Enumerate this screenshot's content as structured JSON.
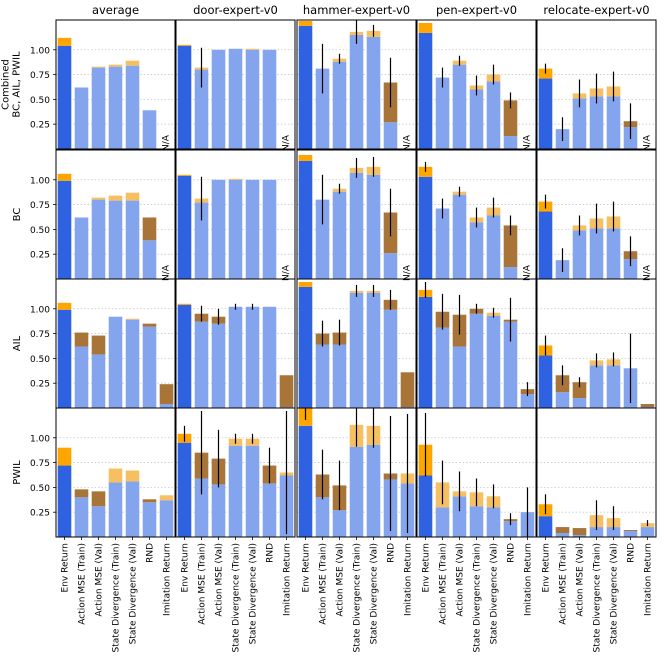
{
  "figure": {
    "column_titles": [
      "average",
      "door-expert-v0",
      "hammer-expert-v0",
      "pen-expert-v0",
      "relocate-expert-v0"
    ],
    "row_labels": [
      [
        "Combined",
        "BC, AIL, PWIL"
      ],
      [
        "BC"
      ],
      [
        "AIL"
      ],
      [
        "PWIL"
      ]
    ],
    "categories": [
      "Env Return",
      "Action MSE (Train)",
      "Action MSE (Val)",
      "State Divergence (Train)",
      "State Divergence (Val)",
      "RND",
      "Imitation Return"
    ],
    "na_label": "N/A",
    "colors": {
      "selected": "#2f62e0",
      "base": "#84a4ee",
      "over_selected": "#ffa500",
      "over_base": "#f6bf62",
      "under": "#a87438",
      "grid": "#c8c8c8",
      "errbar": "#000000"
    }
  },
  "chart_data": {
    "type": "bar",
    "layout": "grid 4 rows x 5 columns, shared x categories per column",
    "ylim": [
      0,
      1.3
    ],
    "yticks": [
      0.25,
      0.5,
      0.75,
      1.0
    ],
    "ytick_labels": [
      "0.25",
      "0.50",
      "0.75",
      "1.00"
    ],
    "grid": "horizontal dotted",
    "legend": "none",
    "bar_encoding": "v = value bar; d = gap to best (positive drawn orange above, negative drawn brown below top); e = error bar half-width; first bar highlighted as selected",
    "panels": [
      [
        {
          "bars": [
            {
              "v": 1.04,
              "d": 0.08
            },
            {
              "v": 0.62,
              "d": 0
            },
            {
              "v": 0.82,
              "d": 0.01
            },
            {
              "v": 0.83,
              "d": 0.02
            },
            {
              "v": 0.84,
              "d": 0.05
            },
            {
              "v": 0.39,
              "d": -0.22
            },
            {
              "na": true
            }
          ]
        },
        {
          "bars": [
            {
              "v": 1.04,
              "d": 0.01
            },
            {
              "v": 0.8,
              "d": 0.02,
              "e": 0.2
            },
            {
              "v": 1.0,
              "d": 0
            },
            {
              "v": 1.01,
              "d": 0
            },
            {
              "v": 1.0,
              "d": 0.01
            },
            {
              "v": 1.0,
              "d": 0
            },
            {
              "na": true
            }
          ]
        },
        {
          "bars": [
            {
              "v": 1.24,
              "d": 0.05
            },
            {
              "v": 0.81,
              "d": 0,
              "e": 0.25
            },
            {
              "v": 0.88,
              "d": 0.03,
              "e": 0.05
            },
            {
              "v": 1.15,
              "d": 0.03,
              "e": 0.12
            },
            {
              "v": 1.13,
              "d": 0.06,
              "e": 0.06
            },
            {
              "v": 0.27,
              "d": 0.4,
              "e": 0.25,
              "dir": "down"
            },
            {
              "na": true
            }
          ]
        },
        {
          "bars": [
            {
              "v": 1.17,
              "d": 0.1
            },
            {
              "v": 0.72,
              "d": 0,
              "e": 0.1
            },
            {
              "v": 0.85,
              "d": 0.04,
              "e": 0.05
            },
            {
              "v": 0.6,
              "d": 0.04,
              "e": 0.1
            },
            {
              "v": 0.68,
              "d": 0.07,
              "e": 0.1
            },
            {
              "v": 0.13,
              "d": 0.36,
              "e": 0.08,
              "dir": "down"
            },
            {
              "na": true
            }
          ]
        },
        {
          "bars": [
            {
              "v": 0.71,
              "d": 0.1,
              "e": 0.05
            },
            {
              "v": 0.2,
              "d": 0,
              "e": 0.12
            },
            {
              "v": 0.51,
              "d": 0.05,
              "e": 0.14
            },
            {
              "v": 0.53,
              "d": 0.08,
              "e": 0.15
            },
            {
              "v": 0.53,
              "d": 0.1,
              "e": 0.15
            },
            {
              "v": 0.22,
              "d": 0.06,
              "e": 0.18,
              "dir": "down"
            },
            {
              "na": true
            }
          ]
        }
      ],
      [
        {
          "bars": [
            {
              "v": 0.99,
              "d": 0.07
            },
            {
              "v": 0.62,
              "d": 0
            },
            {
              "v": 0.8,
              "d": 0.02
            },
            {
              "v": 0.79,
              "d": 0.05
            },
            {
              "v": 0.79,
              "d": 0.08
            },
            {
              "v": 0.39,
              "d": 0.23,
              "dir": "down"
            },
            {
              "na": true
            }
          ]
        },
        {
          "bars": [
            {
              "v": 1.04,
              "d": 0.01
            },
            {
              "v": 0.77,
              "d": 0.04,
              "e": 0.22
            },
            {
              "v": 1.0,
              "d": 0
            },
            {
              "v": 1.0,
              "d": 0.01
            },
            {
              "v": 1.0,
              "d": 0
            },
            {
              "v": 1.0,
              "d": 0
            },
            {
              "na": true
            }
          ]
        },
        {
          "bars": [
            {
              "v": 1.19,
              "d": 0.06
            },
            {
              "v": 0.8,
              "d": 0,
              "e": 0.25
            },
            {
              "v": 0.88,
              "d": 0.03,
              "e": 0.05
            },
            {
              "v": 1.07,
              "d": 0.05,
              "e": 0.1
            },
            {
              "v": 1.05,
              "d": 0.08,
              "e": 0.1
            },
            {
              "v": 0.26,
              "d": 0.41,
              "e": 0.24,
              "dir": "down"
            },
            {
              "na": true
            }
          ]
        },
        {
          "bars": [
            {
              "v": 1.03,
              "d": 0.1,
              "e": 0.05
            },
            {
              "v": 0.71,
              "d": 0,
              "e": 0.1
            },
            {
              "v": 0.85,
              "d": 0.03,
              "e": 0.05
            },
            {
              "v": 0.57,
              "d": 0.05,
              "e": 0.1
            },
            {
              "v": 0.64,
              "d": 0.08,
              "e": 0.1
            },
            {
              "v": 0.12,
              "d": 0.42,
              "e": 0.1,
              "dir": "down"
            },
            {
              "na": true
            }
          ]
        },
        {
          "bars": [
            {
              "v": 0.68,
              "d": 0.1,
              "e": 0.07
            },
            {
              "v": 0.19,
              "d": 0,
              "e": 0.12
            },
            {
              "v": 0.49,
              "d": 0.05,
              "e": 0.1
            },
            {
              "v": 0.51,
              "d": 0.1,
              "e": 0.15
            },
            {
              "v": 0.51,
              "d": 0.12,
              "e": 0.15
            },
            {
              "v": 0.2,
              "d": 0.08,
              "e": 0.15,
              "dir": "down"
            },
            {
              "na": true
            }
          ]
        }
      ],
      [
        {
          "bars": [
            {
              "v": 0.99,
              "d": 0.07
            },
            {
              "v": 0.62,
              "d": 0.14,
              "dir": "down"
            },
            {
              "v": 0.54,
              "d": 0.19,
              "dir": "down"
            },
            {
              "v": 0.92,
              "d": 0
            },
            {
              "v": 0.89,
              "d": 0.01
            },
            {
              "v": 0.82,
              "d": 0.03,
              "dir": "down"
            },
            {
              "v": 0.04,
              "d": 0.2,
              "dir": "down"
            }
          ]
        },
        {
          "bars": [
            {
              "v": 1.04,
              "d": 0.01
            },
            {
              "v": 0.87,
              "d": 0.08,
              "e": 0.08,
              "dir": "down"
            },
            {
              "v": 0.85,
              "d": 0.07,
              "e": 0.08,
              "dir": "down"
            },
            {
              "v": 1.02,
              "d": 0,
              "e": 0.03
            },
            {
              "v": 1.02,
              "d": 0,
              "e": 0.03
            },
            {
              "v": 1.02,
              "d": 0
            },
            {
              "v": 0.01,
              "d": 0.32,
              "dir": "down"
            }
          ]
        },
        {
          "bars": [
            {
              "v": 1.22,
              "d": 0.05
            },
            {
              "v": 0.64,
              "d": 0.11,
              "e": 0.13,
              "dir": "down"
            },
            {
              "v": 0.64,
              "d": 0.12,
              "e": 0.13,
              "dir": "down"
            },
            {
              "v": 1.16,
              "d": 0.02,
              "e": 0.06
            },
            {
              "v": 1.16,
              "d": 0.02,
              "e": 0.06
            },
            {
              "v": 0.99,
              "d": 0.1,
              "e": 0.1,
              "dir": "down"
            },
            {
              "v": 0.01,
              "d": 0.35,
              "dir": "down"
            }
          ]
        },
        {
          "bars": [
            {
              "v": 1.12,
              "d": 0.07,
              "e": 0.08
            },
            {
              "v": 0.81,
              "d": 0.16,
              "e": 0.18,
              "dir": "down"
            },
            {
              "v": 0.62,
              "d": 0.32,
              "e": 0.2,
              "dir": "down"
            },
            {
              "v": 0.95,
              "d": 0.05,
              "e": 0.05,
              "dir": "down"
            },
            {
              "v": 0.93,
              "d": 0.03,
              "e": 0.05
            },
            {
              "v": 0.87,
              "d": 0.02,
              "e": 0.22,
              "dir": "down"
            },
            {
              "v": 0.14,
              "d": 0.05,
              "e": 0.07,
              "dir": "down"
            }
          ]
        },
        {
          "bars": [
            {
              "v": 0.53,
              "d": 0.1,
              "e": 0.1
            },
            {
              "v": 0.16,
              "d": 0.17,
              "e": 0.1,
              "dir": "down"
            },
            {
              "v": 0.1,
              "d": 0.16,
              "e": 0.05,
              "dir": "down"
            },
            {
              "v": 0.43,
              "d": 0.05,
              "e": 0.07
            },
            {
              "v": 0.43,
              "d": 0.06,
              "e": 0.07
            },
            {
              "v": 0.4,
              "d": 0,
              "e": 0.35
            },
            {
              "v": 0.01,
              "d": 0.03,
              "dir": "down"
            }
          ]
        }
      ],
      [
        {
          "bars": [
            {
              "v": 0.72,
              "d": 0.18
            },
            {
              "v": 0.4,
              "d": 0.08,
              "dir": "down"
            },
            {
              "v": 0.31,
              "d": 0.15,
              "dir": "down"
            },
            {
              "v": 0.55,
              "d": 0.14
            },
            {
              "v": 0.56,
              "d": 0.11
            },
            {
              "v": 0.35,
              "d": 0.03,
              "dir": "down"
            },
            {
              "v": 0.37,
              "d": 0.05
            }
          ]
        },
        {
          "bars": [
            {
              "v": 0.95,
              "d": 0.09,
              "e": 0.08
            },
            {
              "v": 0.59,
              "d": 0.26,
              "e": 0.42,
              "dir": "down"
            },
            {
              "v": 0.53,
              "d": 0.26,
              "e": 0.29,
              "dir": "down"
            },
            {
              "v": 0.92,
              "d": 0.07,
              "e": 0.05
            },
            {
              "v": 0.92,
              "d": 0.07,
              "e": 0.05
            },
            {
              "v": 0.54,
              "d": 0.18,
              "e": 0.18,
              "dir": "down"
            },
            {
              "v": 0.62,
              "d": 0.03,
              "e": 0.62
            }
          ]
        },
        {
          "bars": [
            {
              "v": 1.12,
              "d": 0.18,
              "e": 0.12
            },
            {
              "v": 0.4,
              "d": 0.23,
              "e": 0.25,
              "dir": "down"
            },
            {
              "v": 0.27,
              "d": 0.25,
              "e": 0.25,
              "dir": "down"
            },
            {
              "v": 0.91,
              "d": 0.22,
              "e": 0.22
            },
            {
              "v": 0.93,
              "d": 0.19,
              "e": 0.22
            },
            {
              "v": 0.58,
              "d": 0.06,
              "e": 0.58,
              "dir": "down"
            },
            {
              "v": 0.54,
              "d": 0.1,
              "e": 0.6
            }
          ]
        },
        {
          "bars": [
            {
              "v": 0.62,
              "d": 0.31,
              "e": 0.32
            },
            {
              "v": 0.3,
              "d": 0.25,
              "e": 0.22
            },
            {
              "v": 0.41,
              "d": 0.05,
              "e": 0.2
            },
            {
              "v": 0.31,
              "d": 0.14,
              "e": 0.14
            },
            {
              "v": 0.3,
              "d": 0.11,
              "e": 0.12
            },
            {
              "v": 0.16,
              "d": 0.02,
              "e": 0.06,
              "dir": "down"
            },
            {
              "v": 0.25,
              "d": 0,
              "e": 0.25
            }
          ]
        },
        {
          "bars": [
            {
              "v": 0.21,
              "d": 0.12,
              "e": 0.1
            },
            {
              "v": 0.04,
              "d": 0.06,
              "dir": "down"
            },
            {
              "v": 0.02,
              "d": 0.07,
              "dir": "down"
            },
            {
              "v": 0.1,
              "d": 0.12,
              "e": 0.15
            },
            {
              "v": 0.1,
              "d": 0.09,
              "e": 0.12
            },
            {
              "v": 0.06,
              "d": 0.01,
              "dir": "down"
            },
            {
              "v": 0.1,
              "d": 0.04,
              "e": 0.03
            }
          ]
        }
      ]
    ]
  }
}
